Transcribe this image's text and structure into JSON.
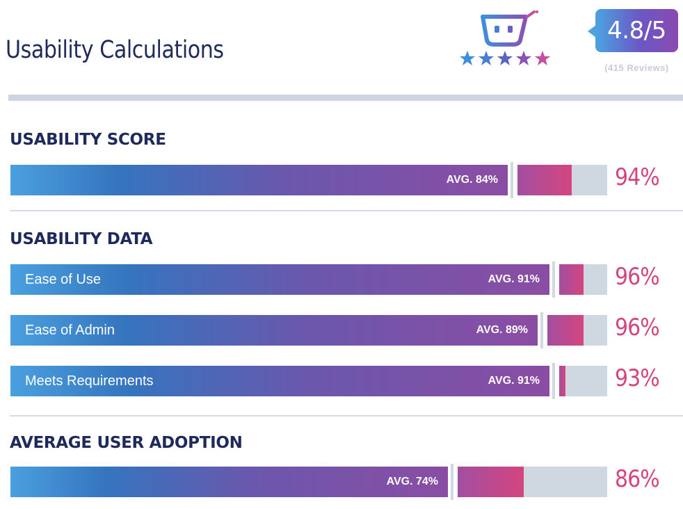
{
  "header": {
    "title": "Usability Calculations",
    "rating": "4.8/5",
    "reviews": "(415 Reviews)",
    "stars": 5,
    "star_colors": [
      "#3d8fdc",
      "#4a7ed6",
      "#5a64c4",
      "#8a52b4",
      "#c34fa0"
    ],
    "logo_icon": "chat-bot-cart-icon"
  },
  "colors": {
    "title": "#1f2a5c",
    "score_pink": "#d4457f",
    "track": "#cfd7e1"
  },
  "chart_data": {
    "type": "bar",
    "orientation": "horizontal",
    "ylim": [
      0,
      100
    ],
    "sections": [
      {
        "title": "USABILITY SCORE",
        "bars": [
          {
            "label": "",
            "avg": 84,
            "avg_label": "AVG. 84%",
            "value": 94,
            "value_label": "94%"
          }
        ]
      },
      {
        "title": "USABILITY DATA",
        "bars": [
          {
            "label": "Ease of Use",
            "avg": 91,
            "avg_label": "AVG. 91%",
            "value": 96,
            "value_label": "96%"
          },
          {
            "label": "Ease of Admin",
            "avg": 89,
            "avg_label": "AVG. 89%",
            "value": 96,
            "value_label": "96%"
          },
          {
            "label": "Meets Requirements",
            "avg": 91,
            "avg_label": "AVG. 91%",
            "value": 93,
            "value_label": "93%"
          }
        ]
      },
      {
        "title": "AVERAGE USER ADOPTION",
        "bars": [
          {
            "label": "",
            "avg": 74,
            "avg_label": "AVG. 74%",
            "value": 86,
            "value_label": "86%"
          }
        ]
      }
    ]
  }
}
